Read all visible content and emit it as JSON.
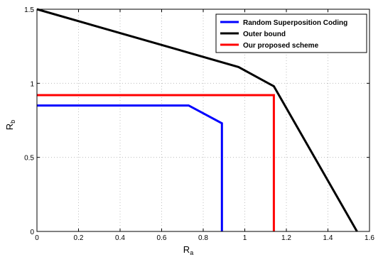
{
  "chart_data": {
    "type": "line",
    "xlabel": "R_a",
    "ylabel": "R_b",
    "xlim": [
      0,
      1.6
    ],
    "ylim": [
      0,
      1.5
    ],
    "xticks": [
      "0",
      "0.2",
      "0.4",
      "0.6",
      "0.8",
      "1",
      "1.2",
      "1.4",
      "1.6"
    ],
    "yticks": [
      "0",
      "0.5",
      "1",
      "1.5"
    ],
    "xtick_values": [
      0,
      0.2,
      0.4,
      0.6,
      0.8,
      1.0,
      1.2,
      1.4,
      1.6
    ],
    "ytick_values": [
      0,
      0.5,
      1.0,
      1.5
    ],
    "grid": true,
    "legend_position": "top-right",
    "series": [
      {
        "name": "Random Superposition Coding",
        "color": "#0000ff",
        "x": [
          0,
          0.73,
          0.89,
          0.89
        ],
        "y": [
          0.85,
          0.85,
          0.73,
          0
        ]
      },
      {
        "name": "Outer bound",
        "color": "#000000",
        "x": [
          0,
          0.97,
          1.14,
          1.54
        ],
        "y": [
          1.5,
          1.11,
          0.98,
          0
        ]
      },
      {
        "name": "Our proposed scheme",
        "color": "#ff0000",
        "x": [
          0,
          1.14,
          1.14
        ],
        "y": [
          0.92,
          0.92,
          0
        ]
      }
    ]
  }
}
